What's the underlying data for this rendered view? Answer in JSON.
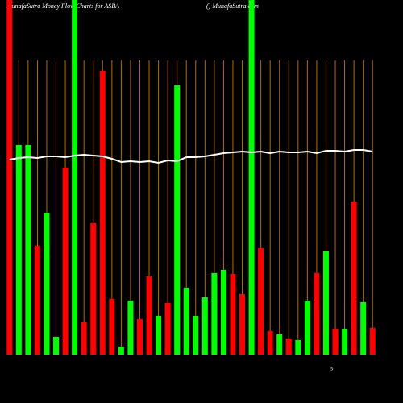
{
  "chart_data": {
    "type": "bar",
    "title": "MunafaSutra  Money Flow  Charts for ASBA",
    "subtitle": "() MunafaSutra.com",
    "annotation": "5",
    "ylim": [
      0,
      440
    ],
    "grid_color": "#b86a00",
    "line_color": "#ffffff",
    "categories": [
      null,
      null,
      null,
      null,
      null,
      null,
      null,
      null,
      null,
      null,
      null,
      null,
      null,
      null,
      null,
      null,
      null,
      null,
      null,
      null,
      null,
      null,
      null,
      null,
      null,
      null,
      null,
      null,
      null,
      null,
      null,
      null,
      null,
      null,
      null,
      null,
      null,
      null,
      null,
      null
    ],
    "values": [
      440,
      260,
      260,
      135,
      176,
      22,
      232,
      440,
      40,
      163,
      352,
      69,
      10,
      67,
      44,
      97,
      48,
      64,
      334,
      83,
      48,
      71,
      101,
      105,
      100,
      75,
      440,
      132,
      29,
      25,
      20,
      18,
      67,
      101,
      128,
      32,
      32,
      190,
      65,
      33
    ],
    "colors": [
      "#ff0000",
      "#00ff00",
      "#00ff00",
      "#ff0000",
      "#00ff00",
      "#00ff00",
      "#ff0000",
      "#00ff00",
      "#ff0000",
      "#ff0000",
      "#ff0000",
      "#ff0000",
      "#00ff00",
      "#00ff00",
      "#ff0000",
      "#ff0000",
      "#00ff00",
      "#ff0000",
      "#00ff00",
      "#00ff00",
      "#00ff00",
      "#00ff00",
      "#00ff00",
      "#00ff00",
      "#ff0000",
      "#ff0000",
      "#00ff00",
      "#ff0000",
      "#ff0000",
      "#00ff00",
      "#ff0000",
      "#00ff00",
      "#00ff00",
      "#ff0000",
      "#00ff00",
      "#ff0000",
      "#00ff00",
      "#ff0000",
      "#00ff00",
      "#ff0000"
    ],
    "line_values": [
      242,
      244,
      245,
      244,
      246,
      246,
      245,
      247,
      248,
      247,
      246,
      243,
      239,
      240,
      239,
      240,
      238,
      241,
      240,
      245,
      245,
      246,
      248,
      250,
      251,
      252,
      251,
      252,
      250,
      252,
      251,
      251,
      252,
      250,
      253,
      253,
      252,
      254,
      254,
      252
    ]
  }
}
